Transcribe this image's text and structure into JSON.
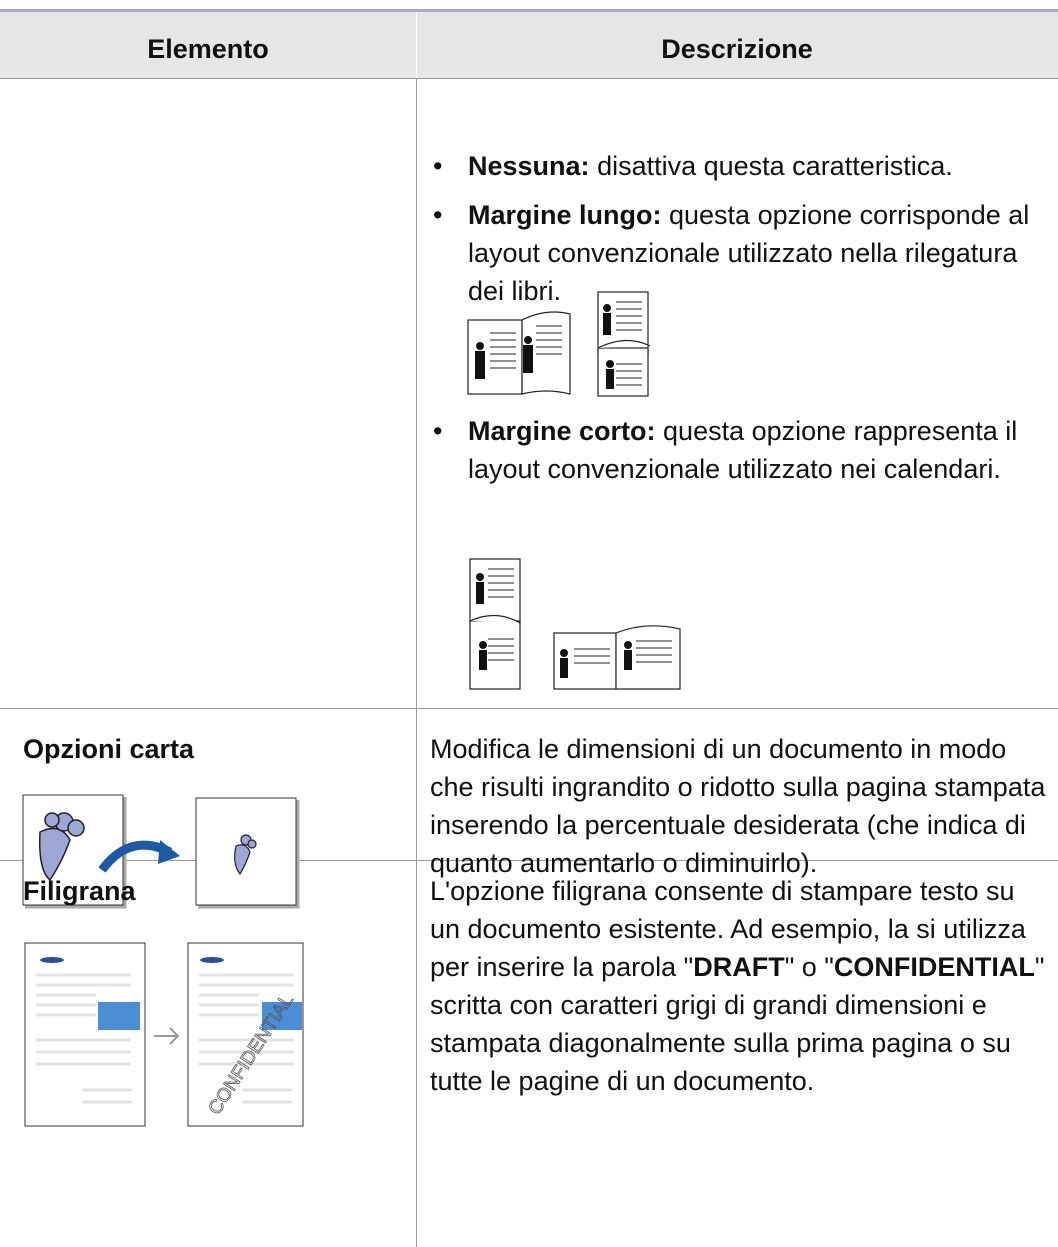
{
  "table": {
    "headers": [
      "Elemento",
      "Descrizione"
    ],
    "rows": [
      {
        "items": [
          {
            "label": "Nessuna:",
            "text": "disattiva questa caratteristica."
          },
          {
            "label": "Margine lungo:",
            "text": "questa opzione corrisponde al layout convenzionale utilizzato nella rilegatura dei libri."
          },
          {
            "label": "Margine corto:",
            "text": "questa opzione rappresenta il layout convenzionale utilizzato nei calendari."
          }
        ]
      },
      {
        "element": "Opzioni carta",
        "description": [
          {
            "text": "Modifica le dimensioni di un documento in modo che risulti ingrandito o ridotto sulla pagina stampata inserendo la percentuale desiderata (che indica di quanto aumentarlo o diminuirlo).",
            "bold": false
          }
        ]
      },
      {
        "element": "Filigrana",
        "watermark": "CONFIDENTIAL",
        "description": [
          {
            "text": "L'opzione filigrana consente di stampare testo su un documento esistente. Ad esempio, la si utilizza per inserire la parola \"",
            "bold": false
          },
          {
            "text": "DRAFT",
            "bold": true
          },
          {
            "text": "\" o \"",
            "bold": false
          },
          {
            "text": "CONFIDENTIAL",
            "bold": true
          },
          {
            "text": "\" scritta con caratteri grigi di grandi dimensioni e stampata diagonalmente sulla prima pagina o su tutte le pagine di un documento.",
            "bold": false
          }
        ]
      }
    ]
  }
}
